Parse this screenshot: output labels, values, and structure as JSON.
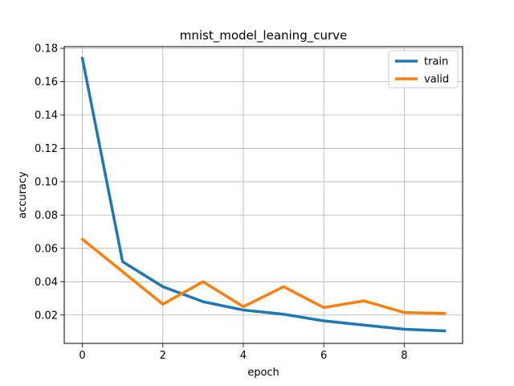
{
  "chart_data": {
    "type": "line",
    "title": "mnist_model_leaning_curve",
    "xlabel": "epoch",
    "ylabel": "accuracy",
    "x": [
      0,
      1,
      2,
      3,
      4,
      5,
      6,
      7,
      8,
      9
    ],
    "xlim": [
      -0.45,
      9.45
    ],
    "ylim": [
      0.003,
      0.181
    ],
    "x_ticks": [
      0,
      2,
      4,
      6,
      8
    ],
    "x_tick_labels": [
      "0",
      "2",
      "4",
      "6",
      "8"
    ],
    "y_ticks": [
      0.02,
      0.04,
      0.06,
      0.08,
      0.1,
      0.12,
      0.14,
      0.16,
      0.18
    ],
    "y_tick_labels": [
      "0.02",
      "0.04",
      "0.06",
      "0.08",
      "0.10",
      "0.12",
      "0.14",
      "0.16",
      "0.18"
    ],
    "grid": true,
    "legend_position": "top-right",
    "series": [
      {
        "name": "train",
        "color": "#1f77b4",
        "values": [
          0.174,
          0.052,
          0.037,
          0.028,
          0.023,
          0.0205,
          0.0165,
          0.014,
          0.0115,
          0.0105
        ]
      },
      {
        "name": "valid",
        "color": "#ff7f0e",
        "values": [
          0.0655,
          0.046,
          0.0265,
          0.04,
          0.025,
          0.037,
          0.0245,
          0.0285,
          0.0215,
          0.021
        ]
      }
    ]
  }
}
